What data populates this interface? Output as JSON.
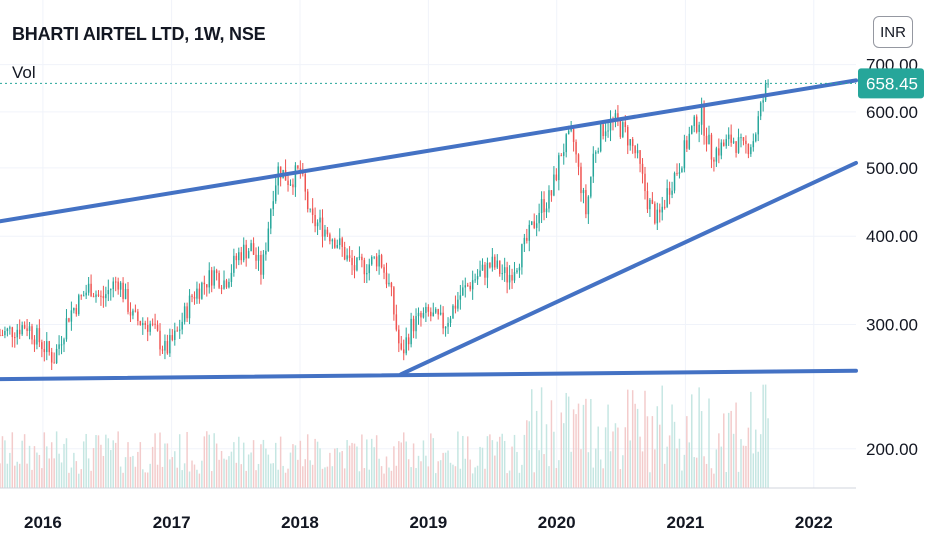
{
  "header": {
    "title": "BHARTI AIRTEL LTD, 1W, NSE",
    "volume_label": "Vol",
    "currency_button": "INR"
  },
  "colors": {
    "up": "#26a69a",
    "down": "#ef5350",
    "trendline": "#4472c4",
    "price_line": "#26a69a",
    "volume": "#f2c5c5"
  },
  "chart_data": {
    "type": "candlestick",
    "symbol": "BHARTI AIRTEL LTD",
    "interval": "1W",
    "exchange": "NSE",
    "currency": "INR",
    "last_price": 658.45,
    "last_price_label": "658.45",
    "y_axis": {
      "scale": "log",
      "range": [
        176,
        720
      ],
      "ticks": [
        200,
        300,
        400,
        500,
        600,
        700
      ],
      "tick_labels": [
        "200.00",
        "300.00",
        "400.00",
        "500.00",
        "600.00",
        "700.00"
      ]
    },
    "x_axis": {
      "range": [
        "2015-09-01",
        "2022-05-01"
      ],
      "ticks": [
        "2016-01-01",
        "2017-01-01",
        "2018-01-01",
        "2019-01-01",
        "2020-01-01",
        "2021-01-01",
        "2022-01-01"
      ],
      "tick_labels": [
        "2016",
        "2017",
        "2018",
        "2019",
        "2020",
        "2021",
        "2022"
      ]
    },
    "anchors": [
      {
        "date": "2015-09-01",
        "close": 290
      },
      {
        "date": "2015-11-15",
        "close": 300
      },
      {
        "date": "2016-02-01",
        "close": 268
      },
      {
        "date": "2016-03-15",
        "close": 310
      },
      {
        "date": "2016-05-15",
        "close": 340
      },
      {
        "date": "2016-06-15",
        "close": 325
      },
      {
        "date": "2016-08-01",
        "close": 348
      },
      {
        "date": "2016-09-15",
        "close": 305
      },
      {
        "date": "2016-11-01",
        "close": 300
      },
      {
        "date": "2016-12-15",
        "close": 275
      },
      {
        "date": "2017-01-15",
        "close": 290
      },
      {
        "date": "2017-03-01",
        "close": 330
      },
      {
        "date": "2017-05-01",
        "close": 355
      },
      {
        "date": "2017-06-01",
        "close": 345
      },
      {
        "date": "2017-07-15",
        "close": 380
      },
      {
        "date": "2017-08-15",
        "close": 385
      },
      {
        "date": "2017-09-15",
        "close": 355
      },
      {
        "date": "2017-10-15",
        "close": 460
      },
      {
        "date": "2017-11-01",
        "close": 500
      },
      {
        "date": "2017-12-01",
        "close": 480
      },
      {
        "date": "2018-01-01",
        "close": 495
      },
      {
        "date": "2018-02-01",
        "close": 420
      },
      {
        "date": "2018-03-01",
        "close": 415
      },
      {
        "date": "2018-04-15",
        "close": 395
      },
      {
        "date": "2018-06-01",
        "close": 360
      },
      {
        "date": "2018-07-15",
        "close": 365
      },
      {
        "date": "2018-08-15",
        "close": 375
      },
      {
        "date": "2018-09-15",
        "close": 335
      },
      {
        "date": "2018-10-15",
        "close": 270
      },
      {
        "date": "2018-11-15",
        "close": 300
      },
      {
        "date": "2019-01-01",
        "close": 310
      },
      {
        "date": "2019-02-15",
        "close": 300
      },
      {
        "date": "2019-04-01",
        "close": 330
      },
      {
        "date": "2019-05-15",
        "close": 350
      },
      {
        "date": "2019-07-01",
        "close": 365
      },
      {
        "date": "2019-08-15",
        "close": 350
      },
      {
        "date": "2019-10-01",
        "close": 385
      },
      {
        "date": "2019-11-15",
        "close": 440
      },
      {
        "date": "2019-12-15",
        "close": 455
      },
      {
        "date": "2020-01-15",
        "close": 530
      },
      {
        "date": "2020-02-15",
        "close": 555
      },
      {
        "date": "2020-03-01",
        "close": 500
      },
      {
        "date": "2020-03-25",
        "close": 430
      },
      {
        "date": "2020-04-15",
        "close": 525
      },
      {
        "date": "2020-05-15",
        "close": 575
      },
      {
        "date": "2020-06-15",
        "close": 580
      },
      {
        "date": "2020-07-15",
        "close": 560
      },
      {
        "date": "2020-08-15",
        "close": 520
      },
      {
        "date": "2020-09-15",
        "close": 450
      },
      {
        "date": "2020-10-15",
        "close": 420
      },
      {
        "date": "2020-11-15",
        "close": 470
      },
      {
        "date": "2020-12-15",
        "close": 505
      },
      {
        "date": "2021-01-15",
        "close": 560
      },
      {
        "date": "2021-02-15",
        "close": 595
      },
      {
        "date": "2021-03-15",
        "close": 525
      },
      {
        "date": "2021-04-15",
        "close": 535
      },
      {
        "date": "2021-05-15",
        "close": 550
      },
      {
        "date": "2021-06-15",
        "close": 530
      },
      {
        "date": "2021-07-15",
        "close": 550
      },
      {
        "date": "2021-08-01",
        "close": 600
      },
      {
        "date": "2021-08-15",
        "close": 640
      },
      {
        "date": "2021-08-25",
        "close": 658.45
      }
    ],
    "trendlines": [
      {
        "name": "upper channel",
        "points": [
          [
            "2015-09-01",
            420
          ],
          [
            "2022-05-01",
            665
          ]
        ]
      },
      {
        "name": "lower channel",
        "points": [
          [
            "2018-10-15",
            255
          ],
          [
            "2022-05-01",
            508
          ]
        ]
      },
      {
        "name": "support",
        "points": [
          [
            "2015-09-01",
            251
          ],
          [
            "2022-05-01",
            258
          ]
        ]
      }
    ]
  }
}
